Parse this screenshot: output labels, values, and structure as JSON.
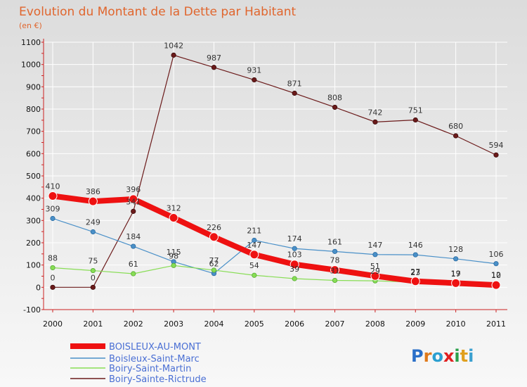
{
  "chart_data": {
    "type": "line",
    "title": "Evolution du Montant de la Dette par Habitant",
    "subtitle": "(en €)",
    "xlabel": "",
    "ylabel": "",
    "ylim": [
      -100,
      1100
    ],
    "y_ticks": [
      "-100",
      "0",
      "100",
      "200",
      "300",
      "400",
      "500",
      "600",
      "700",
      "800",
      "900",
      "1000",
      "1100"
    ],
    "x": [
      "2000",
      "2001",
      "2002",
      "2003",
      "2004",
      "2005",
      "2006",
      "2007",
      "2008",
      "2009",
      "2010",
      "2011"
    ],
    "grid": true,
    "legend_position": "bottom-left",
    "series": [
      {
        "name": "BOISLEUX-AU-MONT",
        "color": "#ee1111",
        "values": [
          410,
          386,
          396,
          312,
          226,
          147,
          103,
          78,
          51,
          27,
          19,
          10
        ]
      },
      {
        "name": "Boisleux-Saint-Marc",
        "color": "#4a90c8",
        "values": [
          309,
          249,
          184,
          115,
          62,
          211,
          174,
          161,
          147,
          146,
          128,
          106
        ]
      },
      {
        "name": "Boiry-Saint-Martin",
        "color": "#88dd55",
        "values": [
          88,
          75,
          61,
          98,
          77,
          54,
          39,
          31,
          29,
          23,
          17,
          12
        ]
      },
      {
        "name": "Boiry-Sainte-Rictrude",
        "color": "#6b1a1a",
        "values": [
          0,
          0,
          341,
          1042,
          987,
          931,
          871,
          808,
          742,
          751,
          680,
          594
        ]
      }
    ]
  },
  "logo": {
    "text": "Proxiti",
    "letters": [
      "P",
      "r",
      "o",
      "x",
      "i",
      "t",
      "i"
    ]
  }
}
